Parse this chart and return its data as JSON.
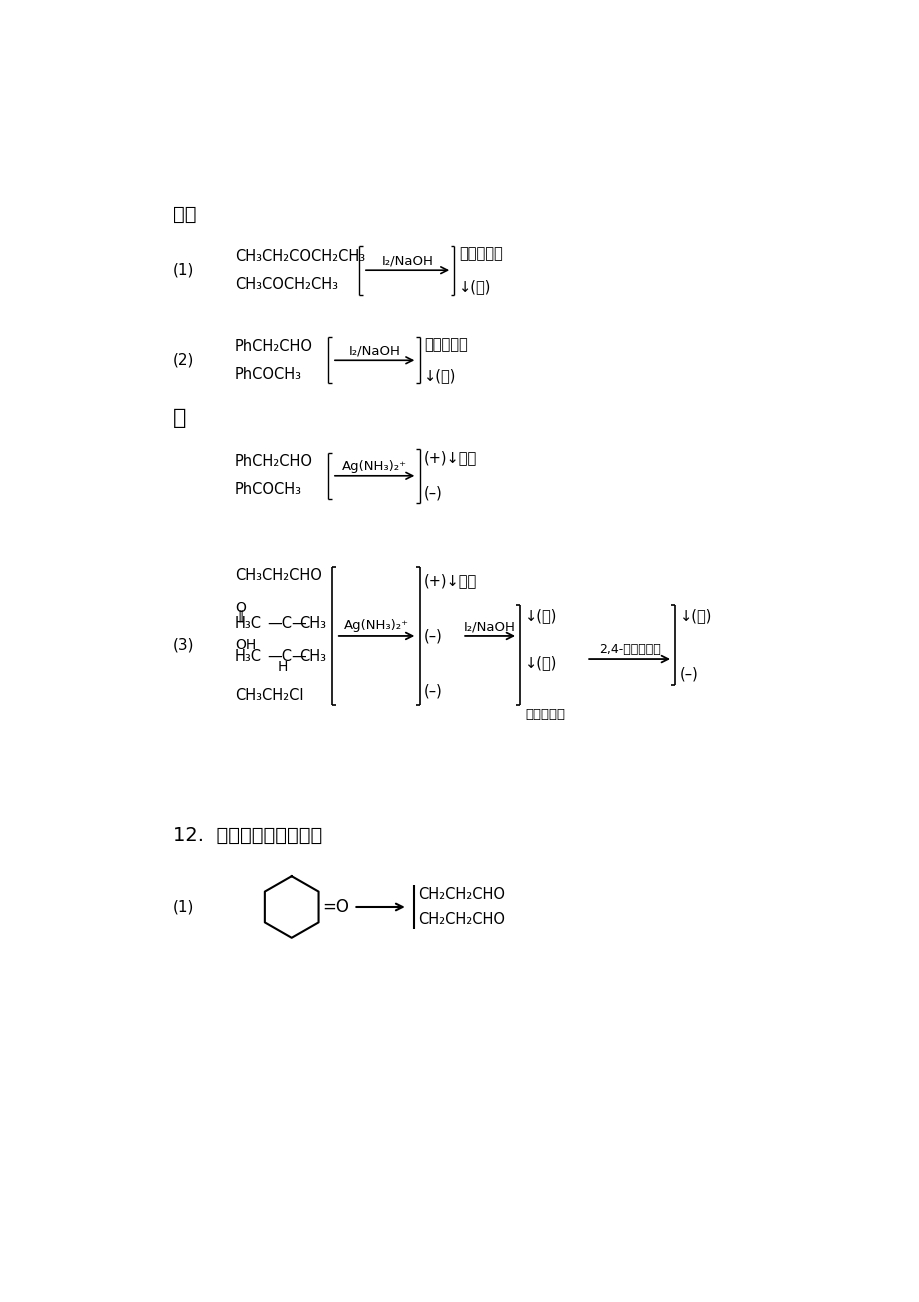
{
  "bg_color": "#ffffff",
  "jie_label": "解：",
  "ou_label": "或",
  "sec12_label": "12.  如何实现下列转变？",
  "wuhuangse": "无黄色沉淠",
  "huangjian": "↓(黄)",
  "yinjing": "銀镈",
  "dnph": "2,4-二硝基苯肼",
  "minus": "(–)",
  "plus_yinjing": "(+)↓銀镈",
  "no_yellow": "无黄色沉淠"
}
